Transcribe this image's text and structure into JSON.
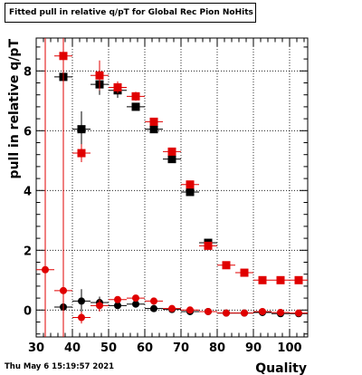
{
  "chart_data": {
    "type": "scatter",
    "title": "Fitted pull in relative q/pT  for Global Rec Pion NoHits",
    "xlabel": "Quality",
    "ylabel": "pull in relative q/pT",
    "xlim": [
      30,
      105
    ],
    "ylim": [
      -0.9,
      9.1
    ],
    "x_ticks": [
      30,
      40,
      50,
      60,
      70,
      80,
      90,
      100
    ],
    "y_ticks": [
      0,
      2,
      4,
      6,
      8
    ],
    "grid": true,
    "legend": "none",
    "series": [
      {
        "marker": "square",
        "color": "#000000",
        "points": [
          {
            "x": 37.5,
            "y": 7.8,
            "yerr": 3.0
          },
          {
            "x": 42.5,
            "y": 6.05,
            "yerr": 0.6
          },
          {
            "x": 47.5,
            "y": 7.55,
            "yerr": 0.35
          },
          {
            "x": 52.5,
            "y": 7.35,
            "yerr": 0.25
          },
          {
            "x": 57.5,
            "y": 6.8,
            "yerr": 0.12
          },
          {
            "x": 62.5,
            "y": 6.05,
            "yerr": 0.1
          },
          {
            "x": 67.5,
            "y": 5.05,
            "yerr": 0.08
          },
          {
            "x": 72.5,
            "y": 3.95,
            "yerr": 0.08
          },
          {
            "x": 77.5,
            "y": 2.25,
            "yerr": 0.05
          }
        ]
      },
      {
        "marker": "square",
        "color": "#e00000",
        "points": [
          {
            "x": 37.5,
            "y": 8.5,
            "yerr": 9.5
          },
          {
            "x": 42.5,
            "y": 5.25,
            "yerr": 0.3
          },
          {
            "x": 47.5,
            "y": 7.85,
            "yerr": 0.5
          },
          {
            "x": 52.5,
            "y": 7.45,
            "yerr": 0.2
          },
          {
            "x": 57.5,
            "y": 7.15,
            "yerr": 0.15
          },
          {
            "x": 62.5,
            "y": 6.3,
            "yerr": 0.1
          },
          {
            "x": 67.5,
            "y": 5.3,
            "yerr": 0.08
          },
          {
            "x": 72.5,
            "y": 4.2,
            "yerr": 0.06
          },
          {
            "x": 77.5,
            "y": 2.15,
            "yerr": 0.05
          },
          {
            "x": 82.5,
            "y": 1.5,
            "yerr": 0.05
          },
          {
            "x": 87.5,
            "y": 1.25,
            "yerr": 0.05
          },
          {
            "x": 92.5,
            "y": 1.0,
            "yerr": 0.05
          },
          {
            "x": 97.5,
            "y": 1.0,
            "yerr": 0.05
          },
          {
            "x": 102.5,
            "y": 1.0,
            "yerr": 0.05
          }
        ]
      },
      {
        "marker": "circle",
        "color": "#000000",
        "points": [
          {
            "x": 37.5,
            "y": 0.1,
            "yerr": 0.25
          },
          {
            "x": 42.5,
            "y": 0.3,
            "yerr": 0.4
          },
          {
            "x": 47.5,
            "y": 0.25,
            "yerr": 0.2
          },
          {
            "x": 52.5,
            "y": 0.15,
            "yerr": 0.1
          },
          {
            "x": 57.5,
            "y": 0.2,
            "yerr": 0.08
          },
          {
            "x": 62.5,
            "y": 0.05,
            "yerr": 0.06
          },
          {
            "x": 67.5,
            "y": 0.02,
            "yerr": 0.05
          },
          {
            "x": 72.5,
            "y": -0.05,
            "yerr": 0.05
          },
          {
            "x": 77.5,
            "y": -0.05,
            "yerr": 0.05
          },
          {
            "x": 82.5,
            "y": -0.1,
            "yerr": 0.04
          },
          {
            "x": 87.5,
            "y": -0.1,
            "yerr": 0.04
          },
          {
            "x": 92.5,
            "y": -0.08,
            "yerr": 0.04
          },
          {
            "x": 97.5,
            "y": -0.12,
            "yerr": 0.04
          },
          {
            "x": 102.5,
            "y": -0.12,
            "yerr": 0.04
          }
        ]
      },
      {
        "marker": "circle",
        "color": "#e00000",
        "points": [
          {
            "x": 32.5,
            "y": 1.35,
            "yerr": 9.0
          },
          {
            "x": 37.5,
            "y": 0.65,
            "yerr": 2.0
          },
          {
            "x": 42.5,
            "y": -0.25,
            "yerr": 0.2
          },
          {
            "x": 47.5,
            "y": 0.15,
            "yerr": 0.2
          },
          {
            "x": 52.5,
            "y": 0.35,
            "yerr": 0.1
          },
          {
            "x": 57.5,
            "y": 0.4,
            "yerr": 0.08
          },
          {
            "x": 62.5,
            "y": 0.3,
            "yerr": 0.07
          },
          {
            "x": 67.5,
            "y": 0.05,
            "yerr": 0.05
          },
          {
            "x": 72.5,
            "y": 0.0,
            "yerr": 0.05
          },
          {
            "x": 77.5,
            "y": -0.05,
            "yerr": 0.04
          },
          {
            "x": 82.5,
            "y": -0.1,
            "yerr": 0.04
          },
          {
            "x": 87.5,
            "y": -0.1,
            "yerr": 0.04
          },
          {
            "x": 92.5,
            "y": -0.05,
            "yerr": 0.04
          },
          {
            "x": 97.5,
            "y": -0.08,
            "yerr": 0.04
          },
          {
            "x": 102.5,
            "y": -0.1,
            "yerr": 0.04
          }
        ]
      }
    ]
  },
  "footer": {
    "timestamp": "Thu May  6 15:19:57 2021"
  },
  "colors": {
    "red": "#e00000",
    "black": "#000000",
    "grid": "#000000"
  }
}
